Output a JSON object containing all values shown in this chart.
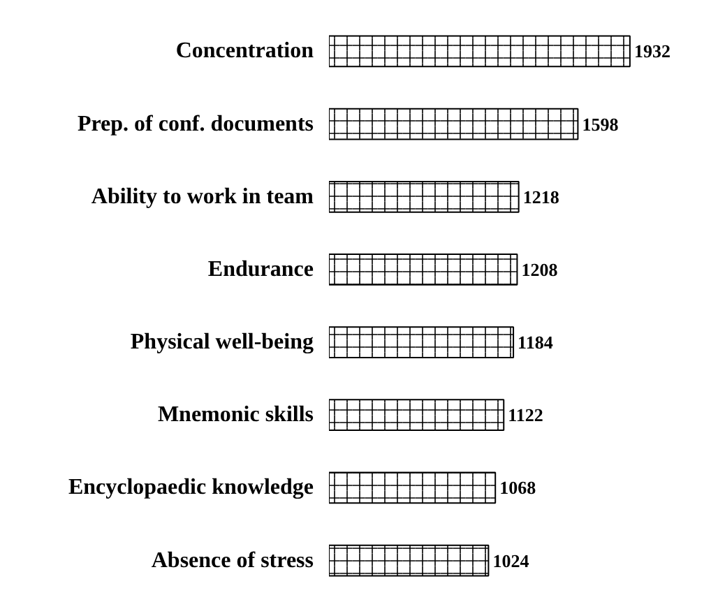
{
  "chart_data": {
    "type": "bar",
    "orientation": "horizontal",
    "categories": [
      "Concentration",
      "Prep. of conf. documents",
      "Ability to work in team",
      "Endurance",
      "Physical well-being",
      "Mnemonic skills",
      "Encyclopaedic knowledge",
      "Absence of stress"
    ],
    "values": [
      1932,
      1598,
      1218,
      1208,
      1184,
      1122,
      1068,
      1024
    ],
    "color": "#ffffff",
    "data_labels": true,
    "grid": false
  }
}
